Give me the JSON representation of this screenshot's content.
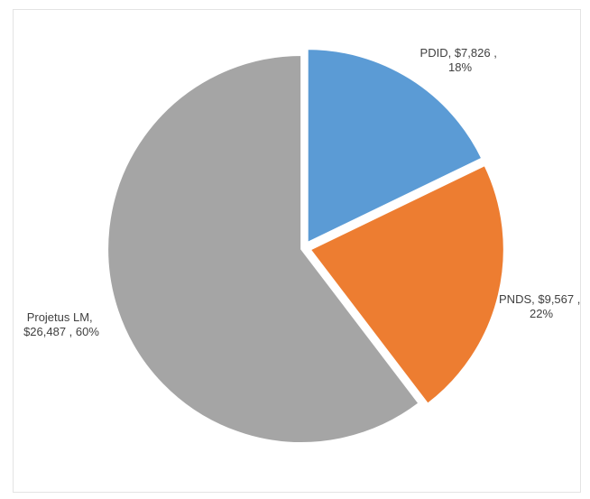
{
  "chart_data": {
    "type": "pie",
    "title": "",
    "slices": [
      {
        "name": "PDID",
        "value": 7826,
        "value_label": "$7,826",
        "percent": 18,
        "percent_label": "18%",
        "color": "#5b9bd5"
      },
      {
        "name": "PNDS",
        "value": 9567,
        "value_label": "$9,567",
        "percent": 22,
        "percent_label": "22%",
        "color": "#ed7d31"
      },
      {
        "name": "Projetus LM",
        "value": 26487,
        "value_label": "$26,487",
        "percent": 60,
        "percent_label": "60%",
        "color": "#a5a5a5"
      }
    ],
    "start": "12 o'clock",
    "direction": "clockwise",
    "exploded": true,
    "legend": "none",
    "data_labels": {
      "PDID": [
        "PDID,  $7,826 ,",
        "18%"
      ],
      "PNDS": [
        "PNDS,  $9,567 ,",
        "22%"
      ],
      "Projetus LM": [
        "Projetus LM,",
        "$26,487 , 60%"
      ]
    }
  }
}
